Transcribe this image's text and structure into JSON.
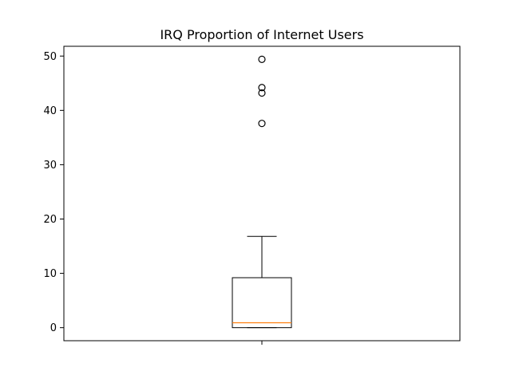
{
  "chart_data": {
    "type": "box",
    "title": "IRQ Proportion of Internet Users",
    "xlabel": "",
    "ylabel": "",
    "ylim": [
      -2.4,
      51.8
    ],
    "yticks": [
      0,
      10,
      20,
      30,
      40,
      50
    ],
    "grid": false,
    "box": {
      "whisker_low": 0.0,
      "q1": 0.0,
      "median": 0.9,
      "q3": 9.2,
      "whisker_high": 16.8,
      "outliers": [
        37.6,
        43.2,
        44.2,
        49.4
      ]
    },
    "colors": {
      "box": "#000000",
      "median": "#ff7f0e",
      "outlier_edge": "#000000"
    }
  }
}
